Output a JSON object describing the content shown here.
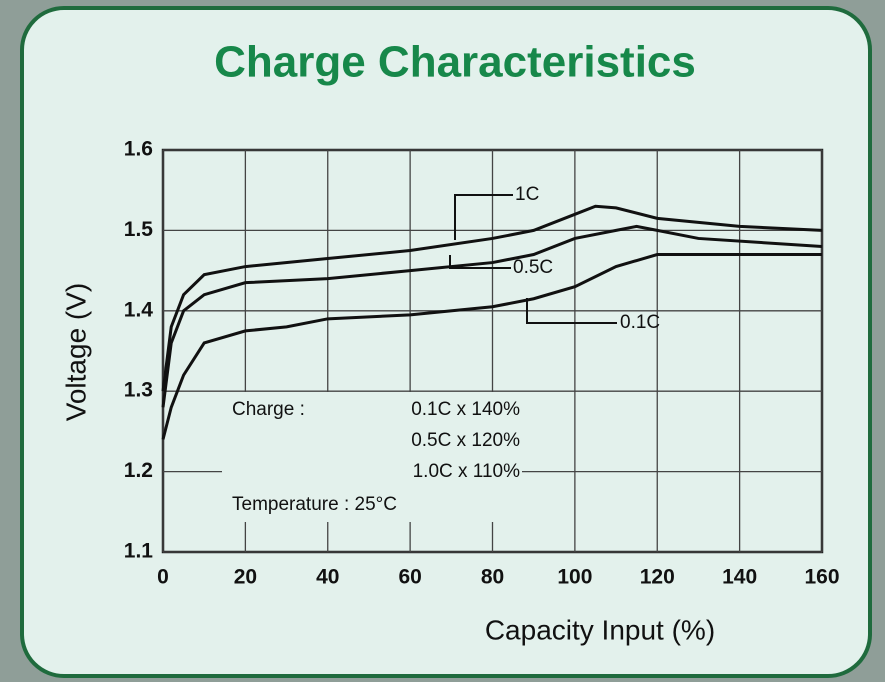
{
  "chart_data": {
    "type": "line",
    "title": "Charge Characteristics",
    "x_label": "Capacity Input (%)",
    "y_label": "Voltage (V)",
    "xlim": [
      0,
      160
    ],
    "ylim": [
      1.1,
      1.6
    ],
    "xticks": [
      0,
      20,
      40,
      60,
      80,
      100,
      120,
      140,
      160
    ],
    "yticks": [
      1.1,
      1.2,
      1.3,
      1.4,
      1.5,
      1.6
    ],
    "grid": true,
    "series": [
      {
        "name": "1C",
        "color": "#111111",
        "x": [
          0,
          2,
          5,
          10,
          20,
          40,
          60,
          80,
          90,
          100,
          105,
          110,
          120,
          140,
          160
        ],
        "values": [
          1.3,
          1.38,
          1.42,
          1.445,
          1.455,
          1.465,
          1.475,
          1.49,
          1.5,
          1.52,
          1.53,
          1.528,
          1.515,
          1.505,
          1.5
        ]
      },
      {
        "name": "0.5C",
        "color": "#111111",
        "x": [
          0,
          2,
          5,
          10,
          20,
          40,
          60,
          80,
          90,
          100,
          110,
          115,
          120,
          130,
          160
        ],
        "values": [
          1.28,
          1.36,
          1.4,
          1.42,
          1.435,
          1.44,
          1.45,
          1.46,
          1.47,
          1.49,
          1.5,
          1.505,
          1.5,
          1.49,
          1.48
        ]
      },
      {
        "name": "0.1C",
        "color": "#111111",
        "x": [
          0,
          2,
          5,
          10,
          20,
          30,
          40,
          60,
          80,
          90,
          100,
          110,
          120,
          140,
          160
        ],
        "values": [
          1.24,
          1.28,
          1.32,
          1.36,
          1.375,
          1.38,
          1.39,
          1.395,
          1.405,
          1.415,
          1.43,
          1.455,
          1.47,
          1.47,
          1.47
        ]
      }
    ],
    "annotations": [
      "Charge :",
      "0.1C x 140%",
      "0.5C x 120%",
      "1.0C x 110%",
      "Temperature : 25°C"
    ]
  }
}
